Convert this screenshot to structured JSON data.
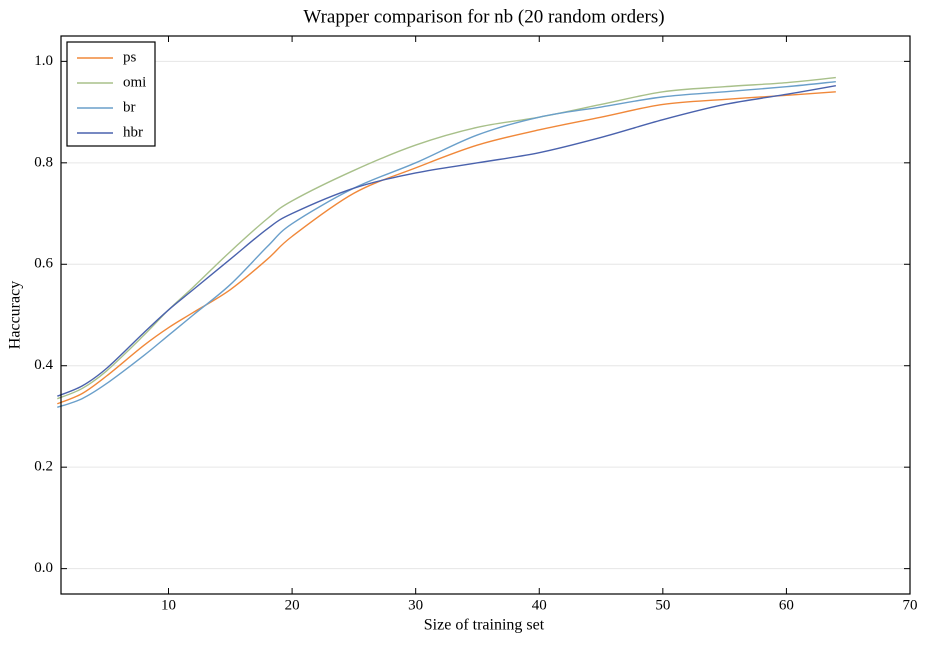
{
  "chart_data": {
    "type": "line",
    "title": "Wrapper comparison for nb (20 random orders)",
    "x_label": "Size of training set",
    "y_label": "Haccuracy",
    "x": [
      1,
      3,
      5,
      8,
      10,
      12,
      15,
      18,
      20,
      25,
      30,
      35,
      40,
      45,
      50,
      55,
      60,
      64
    ],
    "series": [
      {
        "name": "ps",
        "color": "#f0883a",
        "values": [
          0.325,
          0.345,
          0.38,
          0.44,
          0.475,
          0.505,
          0.55,
          0.61,
          0.655,
          0.74,
          0.79,
          0.835,
          0.865,
          0.89,
          0.915,
          0.925,
          0.933,
          0.94
        ]
      },
      {
        "name": "omi",
        "color": "#a8c08a",
        "values": [
          0.335,
          0.355,
          0.39,
          0.46,
          0.51,
          0.555,
          0.625,
          0.69,
          0.725,
          0.785,
          0.835,
          0.87,
          0.89,
          0.915,
          0.94,
          0.95,
          0.958,
          0.968
        ]
      },
      {
        "name": "br",
        "color": "#6a9fca",
        "values": [
          0.318,
          0.335,
          0.365,
          0.42,
          0.46,
          0.5,
          0.56,
          0.635,
          0.68,
          0.75,
          0.8,
          0.855,
          0.89,
          0.91,
          0.93,
          0.94,
          0.95,
          0.96
        ]
      },
      {
        "name": "hbr",
        "color": "#4a62ad",
        "values": [
          0.34,
          0.36,
          0.395,
          0.465,
          0.51,
          0.55,
          0.61,
          0.67,
          0.7,
          0.75,
          0.78,
          0.8,
          0.82,
          0.85,
          0.885,
          0.915,
          0.935,
          0.952
        ]
      }
    ],
    "xlim": [
      1.3,
      70
    ],
    "xticks": [
      10,
      20,
      30,
      40,
      50,
      60,
      70
    ],
    "ylim": [
      -0.05,
      1.05
    ],
    "yticks": [
      {
        "value": 0,
        "label": "0.0"
      },
      0.2,
      0.4,
      0.6,
      0.8,
      {
        "value": 1,
        "label": "1.0"
      }
    ],
    "grid": true,
    "legend": "upper-left"
  }
}
